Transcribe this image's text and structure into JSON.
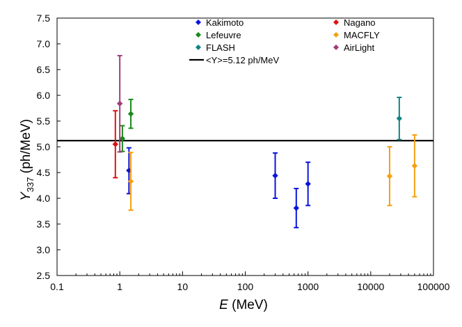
{
  "chart_data": {
    "type": "scatter",
    "xscale": "log",
    "xlim": [
      0.1,
      100000
    ],
    "ylim": [
      2.5,
      7.5
    ],
    "xticks": [
      0.1,
      1,
      10,
      100,
      1000,
      10000,
      100000
    ],
    "xtick_labels": [
      "0.1",
      "1",
      "10",
      "100",
      "1000",
      "10000",
      "100000"
    ],
    "yticks": [
      2.5,
      3.0,
      3.5,
      4.0,
      4.5,
      5.0,
      5.5,
      6.0,
      6.5,
      7.0,
      7.5
    ],
    "ytick_labels": [
      "2.5",
      "3.0",
      "3.5",
      "4.0",
      "4.5",
      "5.0",
      "5.5",
      "6.0",
      "6.5",
      "7.0",
      "7.5"
    ],
    "xlabel_italic": "E",
    "xlabel_rest": " (MeV)",
    "ylabel_italic": "Y",
    "ylabel_sub": "337",
    "ylabel_rest": " (ph/MeV)",
    "grid": false,
    "legend_position": "top",
    "reference_line": {
      "label": "<Y>=5.12 ph/MeV",
      "value": 5.12,
      "color": "#000000"
    },
    "series": [
      {
        "name": "Kakimoto",
        "color": "#0a14dc",
        "points": [
          {
            "x": 1.4,
            "y": 4.54,
            "ylo": 4.09,
            "yhi": 4.98
          },
          {
            "x": 300,
            "y": 4.44,
            "ylo": 4.0,
            "yhi": 4.88
          },
          {
            "x": 650,
            "y": 3.81,
            "ylo": 3.43,
            "yhi": 4.19
          },
          {
            "x": 1000,
            "y": 4.28,
            "ylo": 3.86,
            "yhi": 4.7
          }
        ]
      },
      {
        "name": "Nagano",
        "color": "#e01010",
        "points": [
          {
            "x": 0.85,
            "y": 5.05,
            "ylo": 4.4,
            "yhi": 5.7
          }
        ]
      },
      {
        "name": "Lefeuvre",
        "color": "#1a8a1a",
        "points": [
          {
            "x": 1.1,
            "y": 5.16,
            "ylo": 4.91,
            "yhi": 5.41
          },
          {
            "x": 1.5,
            "y": 5.64,
            "ylo": 5.36,
            "yhi": 5.92
          }
        ]
      },
      {
        "name": "MACFLY",
        "color": "#f5a010",
        "points": [
          {
            "x": 1.5,
            "y": 4.33,
            "ylo": 3.77,
            "yhi": 4.89
          },
          {
            "x": 20000,
            "y": 4.43,
            "ylo": 3.86,
            "yhi": 5.0
          },
          {
            "x": 50000,
            "y": 4.63,
            "ylo": 4.03,
            "yhi": 5.23
          }
        ]
      },
      {
        "name": "FLASH",
        "color": "#148282",
        "points": [
          {
            "x": 28500,
            "y": 5.55,
            "ylo": 5.14,
            "yhi": 5.96
          }
        ]
      },
      {
        "name": "AirLight",
        "color": "#a03c78",
        "points": [
          {
            "x": 1.0,
            "y": 5.84,
            "ylo": 4.9,
            "yhi": 6.77
          }
        ]
      }
    ]
  }
}
